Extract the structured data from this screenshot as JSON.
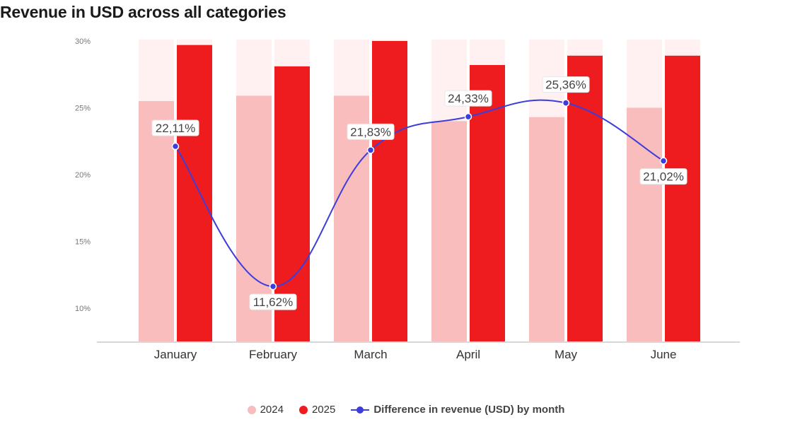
{
  "title": "Revenue in USD across all categories",
  "colors": {
    "series_2024": "#f9bdbd",
    "series_2025": "#ee1c1e",
    "track": "#fff1f1",
    "line": "#3d3ddb"
  },
  "legend": {
    "items": [
      "2024",
      "2025",
      "Difference in revenue (USD) by month"
    ]
  },
  "chart_data": {
    "type": "bar",
    "title": "Revenue in USD across all categories",
    "categories": [
      "January",
      "February",
      "March",
      "April",
      "May",
      "June"
    ],
    "yticks": [
      "10%",
      "15%",
      "20%",
      "25%",
      "30%"
    ],
    "ylim": [
      7.5,
      30
    ],
    "series": [
      {
        "name": "2024",
        "type": "bar",
        "values": [
          25.5,
          25.9,
          25.9,
          24.0,
          24.3,
          25.0
        ]
      },
      {
        "name": "2025",
        "type": "bar",
        "values": [
          29.7,
          28.1,
          30.0,
          28.2,
          28.9,
          28.9
        ]
      },
      {
        "name": "Difference in revenue (USD) by month",
        "type": "line",
        "values": [
          22.11,
          11.62,
          21.83,
          24.33,
          25.36,
          21.02
        ],
        "labels": [
          "22,11%",
          "11,62%",
          "21,83%",
          "24,33%",
          "25,36%",
          "21,02%"
        ]
      }
    ],
    "grid": false,
    "legend_position": "bottom-center"
  }
}
